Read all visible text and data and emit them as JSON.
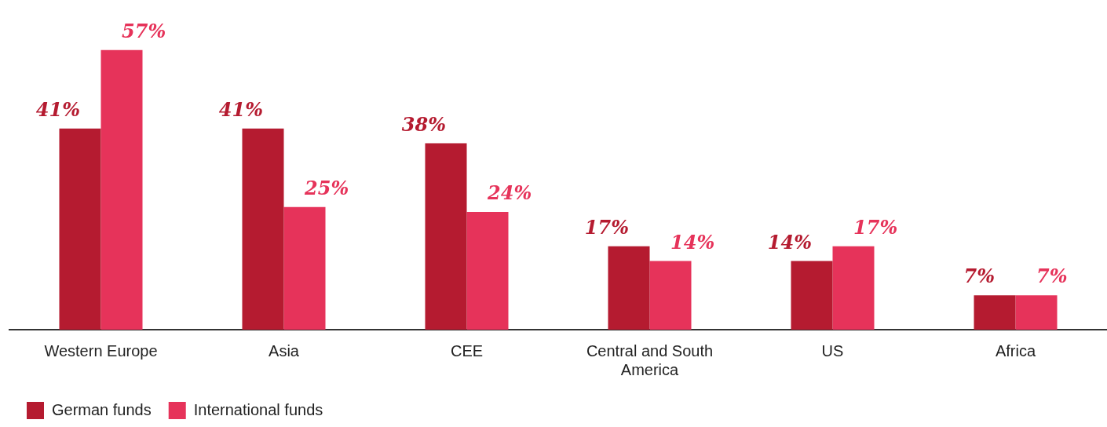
{
  "chart_data": {
    "type": "bar",
    "categories": [
      "Western Europe",
      "Asia",
      "CEE",
      "Central and South America",
      "US",
      "Africa"
    ],
    "series": [
      {
        "name": "German funds",
        "color": "#b51b30",
        "values": [
          41,
          41,
          38,
          17,
          14,
          7
        ],
        "value_labels": [
          "41%",
          "41%",
          "38%",
          "17%",
          "14%",
          "7%"
        ]
      },
      {
        "name": "International funds",
        "color": "#e6335a",
        "values": [
          57,
          25,
          24,
          14,
          17,
          7
        ],
        "value_labels": [
          "57%",
          "25%",
          "24%",
          "14%",
          "17%",
          "7%"
        ]
      }
    ],
    "legend": "bottom",
    "grid": false
  }
}
